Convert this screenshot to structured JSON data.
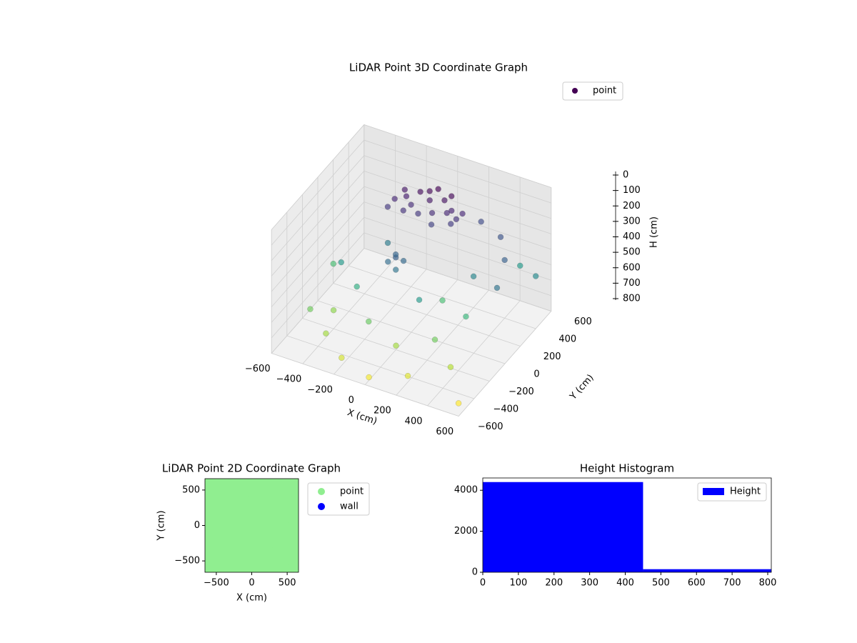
{
  "chart_data": [
    {
      "type": "scatter3d",
      "title": "LiDAR Point 3D Coordinate Graph",
      "xlabel": "X (cm)",
      "ylabel": "Y (cm)",
      "zlabel": "H (cm)",
      "colormap": "viridis",
      "zinverted": true,
      "xlim": [
        -600,
        600
      ],
      "ylim": [
        -600,
        600
      ],
      "zlim": [
        0,
        800
      ],
      "xticks": [
        {
          "value": -600,
          "label": "−600"
        },
        {
          "value": -400,
          "label": "−400"
        },
        {
          "value": -200,
          "label": "−200"
        },
        0,
        200,
        400,
        600
      ],
      "yticks": [
        {
          "value": -600,
          "label": "−600"
        },
        {
          "value": -400,
          "label": "−400"
        },
        {
          "value": -200,
          "label": "−200"
        },
        0,
        200,
        400,
        600
      ],
      "zticks": [
        0,
        100,
        200,
        300,
        400,
        500,
        600,
        700,
        800
      ],
      "series": [
        {
          "name": "point",
          "color": "#440154",
          "x": [
            -80,
            -150,
            -220,
            -280,
            0,
            60,
            100,
            -40,
            -120,
            -200,
            -300,
            30,
            -60,
            120,
            80,
            -250,
            -180,
            -100,
            40,
            -20,
            -100,
            -60,
            -140,
            -80,
            -120,
            200,
            350,
            450,
            500,
            300,
            100,
            -300,
            -450,
            -500,
            -350,
            -200,
            0,
            200,
            400,
            550,
            -550,
            150,
            -250,
            250,
            450,
            -400,
            50,
            -150,
            350,
            600
          ],
          "y": [
            400,
            420,
            380,
            350,
            430,
            400,
            380,
            350,
            330,
            300,
            300,
            460,
            470,
            420,
            350,
            420,
            360,
            440,
            380,
            300,
            0,
            20,
            -20,
            -40,
            40,
            500,
            450,
            300,
            100,
            200,
            -100,
            -100,
            0,
            -300,
            -400,
            -500,
            -550,
            -450,
            -300,
            -500,
            100,
            100,
            200,
            -200,
            500,
            -200,
            -300,
            -250,
            0,
            400
          ],
          "z": [
            200,
            180,
            210,
            230,
            190,
            220,
            250,
            240,
            260,
            250,
            260,
            170,
            160,
            230,
            270,
            200,
            240,
            170,
            230,
            280,
            350,
            370,
            380,
            400,
            360,
            300,
            320,
            350,
            400,
            450,
            500,
            550,
            500,
            650,
            700,
            750,
            780,
            760,
            720,
            790,
            600,
            600,
            420,
            650,
            500,
            680,
            700,
            640,
            580,
            460
          ]
        }
      ],
      "legend": "upper right"
    },
    {
      "type": "scatter",
      "title": "LiDAR Point 2D Coordinate Graph",
      "xlabel": "X (cm)",
      "ylabel": "Y (cm)",
      "xlim": [
        -660,
        660
      ],
      "ylim": [
        -660,
        660
      ],
      "xticks": [
        {
          "value": -500,
          "label": "−500"
        },
        0,
        500
      ],
      "yticks": [
        {
          "value": -500,
          "label": "−500"
        },
        0,
        500
      ],
      "series": [
        {
          "name": "point",
          "color": "#90ee90",
          "x": [
            -600,
            -480,
            -360,
            -240,
            -120,
            0,
            120,
            240,
            360,
            480,
            600,
            -600,
            -480,
            -360,
            -240,
            -120,
            0,
            120,
            240,
            360,
            480,
            600,
            -600,
            -480,
            -360,
            -240,
            -120,
            0,
            120,
            240,
            360,
            480,
            600,
            -600,
            -480,
            -360,
            -240,
            -120,
            0,
            120,
            240,
            360,
            480,
            600,
            -600,
            -480,
            -360,
            -240,
            -120,
            0,
            120,
            240,
            360,
            480,
            600,
            -600,
            -480,
            -360,
            -240,
            -120,
            0,
            120,
            240,
            360,
            480,
            600,
            -600,
            -480,
            -360,
            -240,
            -120,
            0,
            120,
            240,
            360,
            480,
            600,
            -600,
            -480,
            -360,
            -240,
            -120,
            0,
            120,
            240,
            360,
            480,
            600,
            -600,
            -480,
            -360,
            -240,
            -120,
            0,
            120,
            240,
            360,
            480,
            600,
            -600,
            -480,
            -360,
            -240,
            -120,
            0,
            120,
            240,
            360,
            480,
            600,
            -600,
            -480,
            -360,
            -240,
            -120,
            0,
            120,
            240,
            360,
            480,
            600
          ],
          "y": [
            -600,
            -600,
            -600,
            -600,
            -600,
            -600,
            -600,
            -600,
            -600,
            -600,
            -600,
            -480,
            -480,
            -480,
            -480,
            -480,
            -480,
            -480,
            -480,
            -480,
            -480,
            -480,
            -360,
            -360,
            -360,
            -360,
            -360,
            -360,
            -360,
            -360,
            -360,
            -360,
            -360,
            -240,
            -240,
            -240,
            -240,
            -240,
            -240,
            -240,
            -240,
            -240,
            -240,
            -240,
            -120,
            -120,
            -120,
            -120,
            -120,
            -120,
            -120,
            -120,
            -120,
            -120,
            -120,
            0,
            0,
            0,
            0,
            0,
            0,
            0,
            0,
            0,
            0,
            0,
            120,
            120,
            120,
            120,
            120,
            120,
            120,
            120,
            120,
            120,
            120,
            240,
            240,
            240,
            240,
            240,
            240,
            240,
            240,
            240,
            240,
            240,
            360,
            360,
            360,
            360,
            360,
            360,
            360,
            360,
            360,
            360,
            360,
            480,
            480,
            480,
            480,
            480,
            480,
            480,
            480,
            480,
            480,
            480,
            600,
            600,
            600,
            600,
            600,
            600,
            600,
            600,
            600,
            600,
            600
          ]
        },
        {
          "name": "wall",
          "color": "#0000ff",
          "x": [],
          "y": []
        }
      ],
      "legend": "outside right"
    },
    {
      "type": "histogram",
      "title": "Height Histogram",
      "bins": [
        0,
        450,
        810
      ],
      "counts": [
        4400,
        150
      ],
      "color": "#0000ff",
      "name": "Height",
      "xlim": [
        0,
        810
      ],
      "ylim": [
        0,
        4600
      ],
      "xticks": [
        0,
        100,
        200,
        300,
        400,
        500,
        600,
        700,
        800
      ],
      "yticks": [
        0,
        2000,
        4000
      ],
      "legend": "upper right"
    }
  ]
}
